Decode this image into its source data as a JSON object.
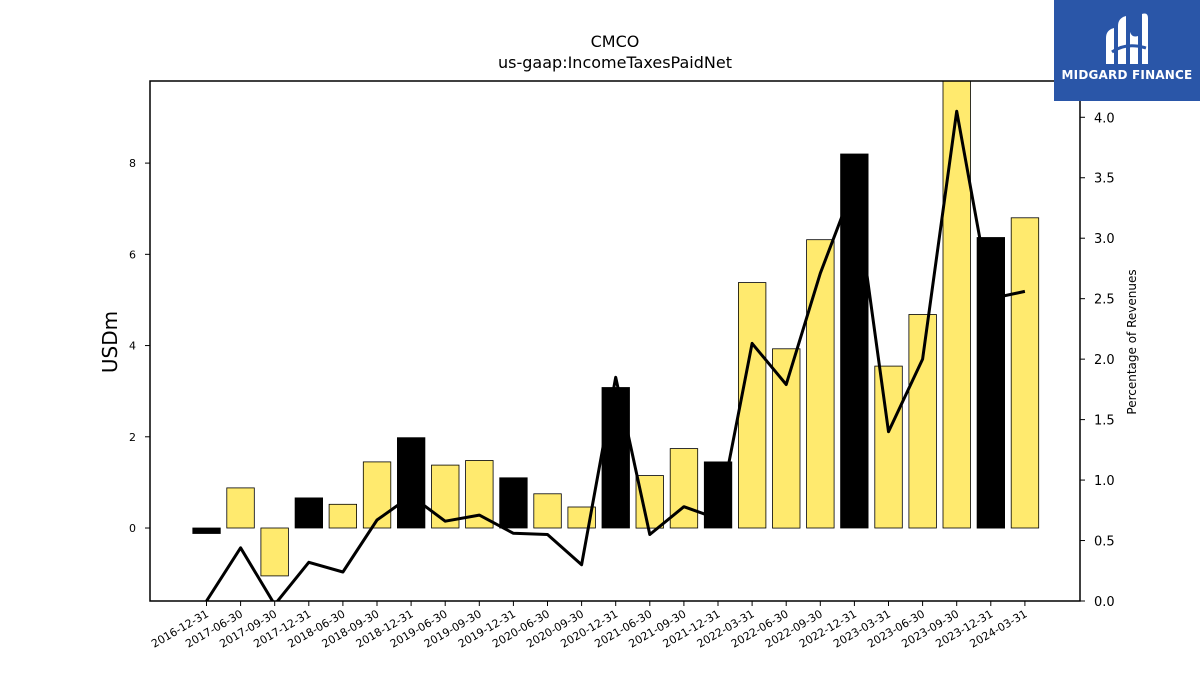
{
  "brand": {
    "name": "MIDGARD FINANCE",
    "logo_icon": "midgard-m-logo",
    "color": "#2a56a8"
  },
  "chart_data": {
    "type": "bar",
    "title": "CMCO",
    "subtitle": "us-gaap:IncomeTaxesPaidNet",
    "ylabel": "USDm",
    "y2label": "Percentage of Revenues",
    "ylim": [
      -1.6,
      9.8
    ],
    "y2lim": [
      0.0,
      4.3
    ],
    "yticks": [
      0,
      2,
      4,
      6,
      8
    ],
    "y2ticks": [
      "0.0",
      "0.5",
      "1.0",
      "1.5",
      "2.0",
      "2.5",
      "3.0",
      "3.5",
      "4.0"
    ],
    "categories": [
      "2016-12-31",
      "2017-06-30",
      "2017-09-30",
      "2017-12-31",
      "2018-06-30",
      "2018-09-30",
      "2018-12-31",
      "2019-06-30",
      "2019-09-30",
      "2019-12-31",
      "2020-06-30",
      "2020-09-30",
      "2020-12-31",
      "2021-06-30",
      "2021-09-30",
      "2021-12-31",
      "2022-03-31",
      "2022-06-30",
      "2022-09-30",
      "2022-12-31",
      "2023-03-31",
      "2023-06-30",
      "2023-09-30",
      "2023-12-31",
      "2024-03-31"
    ],
    "series": [
      {
        "type": "bar",
        "axis": "left",
        "values": [
          -0.12,
          0.88,
          -1.05,
          0.66,
          0.52,
          1.45,
          1.98,
          1.38,
          1.48,
          1.1,
          0.75,
          0.46,
          3.08,
          1.15,
          1.74,
          1.45,
          5.38,
          3.93,
          6.32,
          8.2,
          3.55,
          4.68,
          9.9,
          6.37,
          6.8
        ],
        "year_end": [
          true,
          false,
          false,
          true,
          false,
          false,
          true,
          false,
          false,
          true,
          false,
          false,
          true,
          false,
          false,
          true,
          false,
          false,
          false,
          true,
          false,
          false,
          false,
          true,
          false
        ]
      },
      {
        "type": "line",
        "axis": "right",
        "values": [
          0.0,
          0.44,
          -0.03,
          0.32,
          0.24,
          0.67,
          0.87,
          0.66,
          0.71,
          0.56,
          0.55,
          0.3,
          1.85,
          0.55,
          0.78,
          0.68,
          2.13,
          1.79,
          2.71,
          3.45,
          1.4,
          2.0,
          4.05,
          2.5,
          2.56
        ]
      }
    ],
    "colors": {
      "bar": "#ffea6e",
      "bar_year_end": "#000000",
      "line": "#000000"
    },
    "grid": false,
    "legend": "none"
  }
}
